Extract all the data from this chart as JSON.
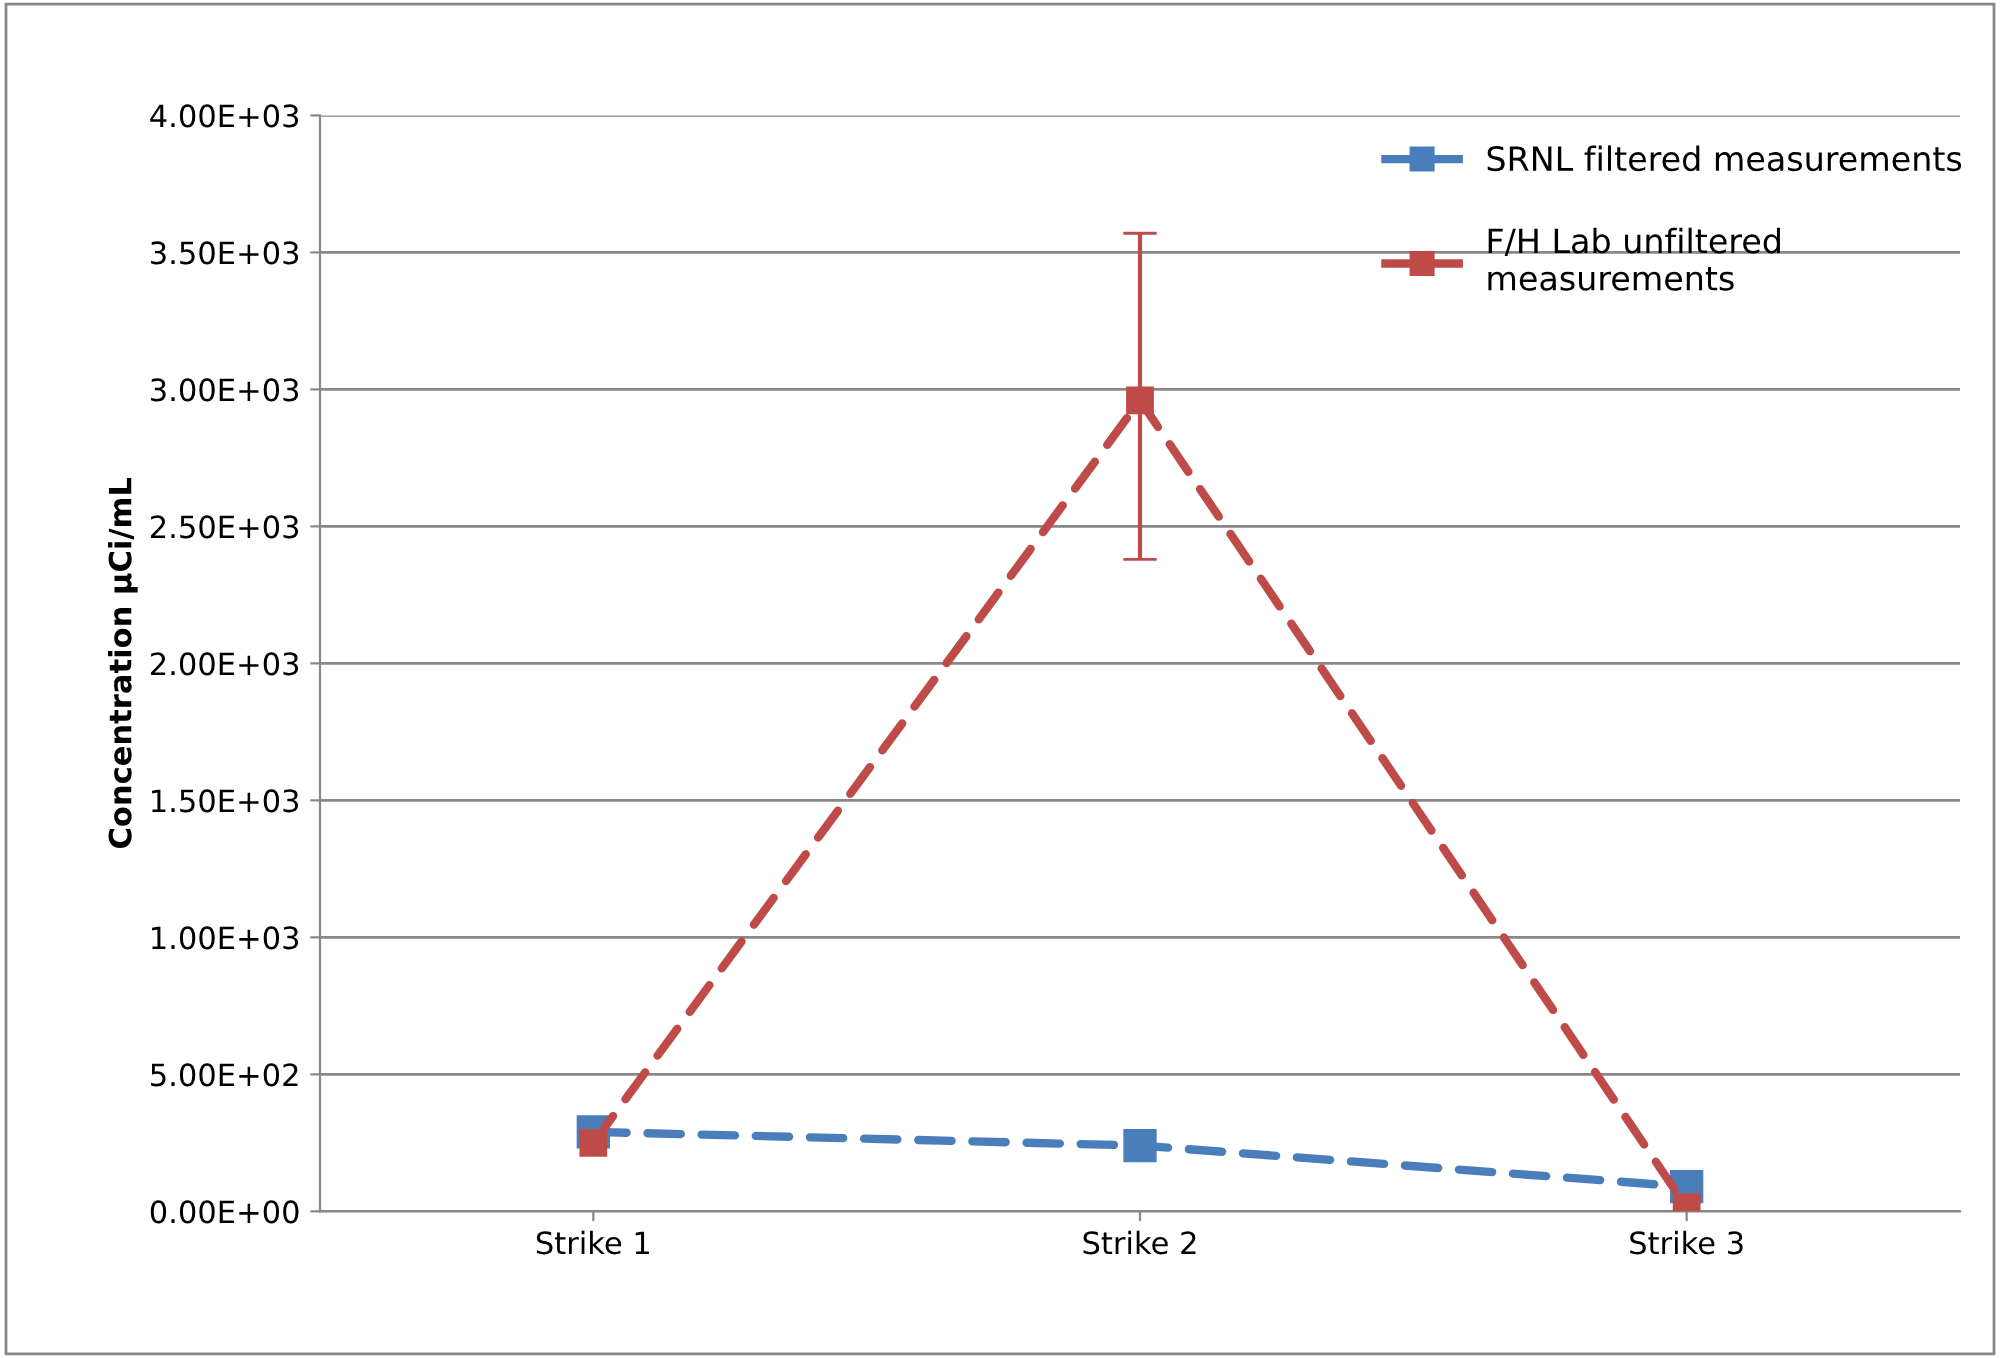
{
  "chart_data": {
    "type": "line",
    "ylabel": "Concentration µCi/mL",
    "categories": [
      "Strike 1",
      "Strike 2",
      "Strike 3"
    ],
    "series": [
      {
        "name": "SRNL filtered measurements",
        "color": "#4a7ebb",
        "values": [
          290,
          240,
          90
        ]
      },
      {
        "name": "F/H Lab unfiltered\nmeasurements",
        "color": "#be4b48",
        "values": [
          250,
          2960,
          15
        ],
        "errors": [
          null,
          [
            2380,
            3570
          ],
          null
        ]
      }
    ],
    "ylim": [
      0,
      4000
    ],
    "yticks": [
      {
        "value": 0,
        "label": "0.00E+00"
      },
      {
        "value": 500,
        "label": "5.00E+02"
      },
      {
        "value": 1000,
        "label": "1.00E+03"
      },
      {
        "value": 1500,
        "label": "1.50E+03"
      },
      {
        "value": 2000,
        "label": "2.00E+03"
      },
      {
        "value": 2500,
        "label": "2.50E+03"
      },
      {
        "value": 3000,
        "label": "3.00E+03"
      },
      {
        "value": 3500,
        "label": "3.50E+03"
      },
      {
        "value": 4000,
        "label": "4.00E+03"
      }
    ],
    "grid": "y",
    "legend": "top right",
    "marker": "square",
    "line_style": "dashed"
  }
}
